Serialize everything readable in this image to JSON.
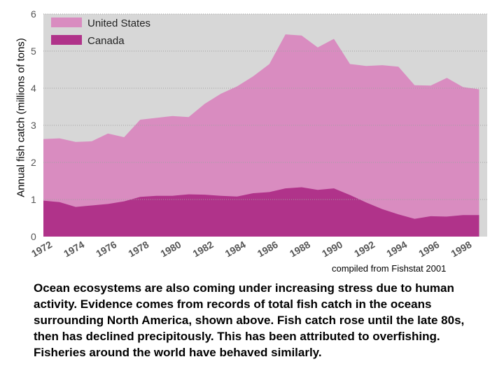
{
  "chart_data": {
    "type": "area",
    "ylabel": "Annual fish catch (millions of tons)",
    "xlabel": "",
    "ylim": [
      0,
      6
    ],
    "xlim": [
      1972,
      1999.5
    ],
    "y_ticks": [
      "0",
      "1",
      "2",
      "3",
      "4",
      "5",
      "6"
    ],
    "x_ticks": [
      "1972",
      "1974",
      "1976",
      "1978",
      "1980",
      "1982",
      "1984",
      "1986",
      "1988",
      "1990",
      "1992",
      "1994",
      "1996",
      "1998"
    ],
    "x": [
      1972,
      1973,
      1974,
      1975,
      1976,
      1977,
      1978,
      1979,
      1980,
      1981,
      1982,
      1983,
      1984,
      1985,
      1986,
      1987,
      1988,
      1989,
      1990,
      1991,
      1992,
      1993,
      1994,
      1995,
      1996,
      1997,
      1998,
      1999
    ],
    "series": [
      {
        "name": "United States",
        "color": "#d98cc0",
        "total": [
          2.63,
          2.65,
          2.55,
          2.57,
          2.78,
          2.68,
          3.15,
          3.2,
          3.25,
          3.22,
          3.58,
          3.85,
          4.05,
          4.32,
          4.65,
          5.45,
          5.42,
          5.1,
          5.33,
          4.65,
          4.6,
          4.62,
          4.58,
          4.08,
          4.07,
          4.28,
          4.03,
          3.97
        ]
      },
      {
        "name": "Canada",
        "color": "#b0338a",
        "values": [
          0.97,
          0.93,
          0.8,
          0.84,
          0.88,
          0.95,
          1.07,
          1.1,
          1.1,
          1.14,
          1.13,
          1.1,
          1.08,
          1.17,
          1.2,
          1.3,
          1.33,
          1.26,
          1.3,
          1.12,
          0.92,
          0.74,
          0.6,
          0.48,
          0.55,
          0.54,
          0.58,
          0.58
        ]
      }
    ],
    "legend_placement": "top-left",
    "grid": true,
    "plot_background": "#d7d7d7",
    "gridline_color": "#a0a0a0"
  },
  "source_note": "compiled from Fishstat 2001",
  "caption": "Ocean ecosystems are also coming under increasing stress due to human activity.  Evidence comes from records of total fish catch in the oceans surrounding North America, shown above.  Fish catch rose until the late 80s, then has declined precipitously.  This has been attributed to overfishing.  Fisheries around the world have behaved similarly."
}
